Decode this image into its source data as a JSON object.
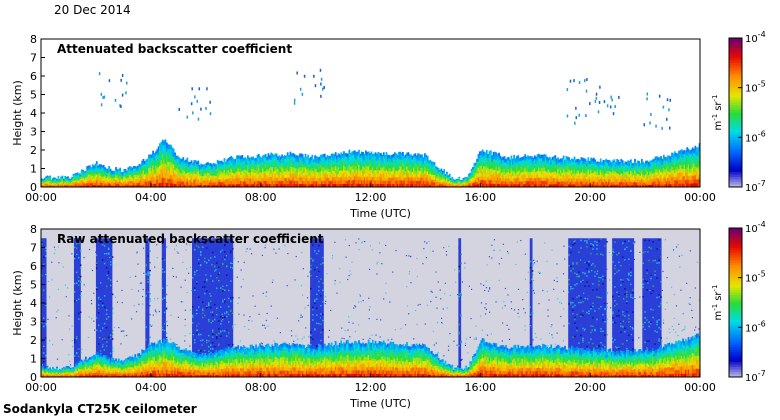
{
  "date": "20 Dec 2014",
  "instrument": "Sodankyla CT25K ceilometer",
  "chart_data": [
    {
      "type": "heatmap",
      "title": "Attenuated backscatter coefficient",
      "xlabel": "Time (UTC)",
      "ylabel": "Height (km)",
      "xticks": [
        "00:00",
        "04:00",
        "08:00",
        "12:00",
        "16:00",
        "20:00",
        "00:00"
      ],
      "yticks": [
        "0",
        "1",
        "2",
        "3",
        "4",
        "5",
        "6",
        "7",
        "8"
      ],
      "xlim": [
        0,
        24
      ],
      "ylim": [
        0,
        8
      ],
      "colorbar": {
        "unit_base": "m",
        "unit_base_exp": "-1",
        "unit_ster": "sr",
        "unit_ster_exp": "-1",
        "ticks": [
          {
            "base": "10",
            "exp": "-4"
          },
          {
            "base": "10",
            "exp": "-5"
          },
          {
            "base": "10",
            "exp": "-6"
          },
          {
            "base": "10",
            "exp": "-7"
          }
        ],
        "scale": "log",
        "range": [
          1e-07,
          0.0001
        ]
      },
      "boundary_layer_top_km": [
        [
          0,
          0.5
        ],
        [
          1,
          0.5
        ],
        [
          2,
          1.3
        ],
        [
          2.5,
          1.0
        ],
        [
          3,
          0.9
        ],
        [
          3.5,
          1.2
        ],
        [
          4,
          1.8
        ],
        [
          4.5,
          2.6
        ],
        [
          5,
          1.6
        ],
        [
          6,
          1.2
        ],
        [
          7,
          1.6
        ],
        [
          8,
          1.7
        ],
        [
          9,
          1.8
        ],
        [
          10,
          1.6
        ],
        [
          11,
          1.9
        ],
        [
          12,
          1.9
        ],
        [
          13,
          1.8
        ],
        [
          14,
          1.7
        ],
        [
          14.5,
          1.0
        ],
        [
          15,
          0.5
        ],
        [
          15.5,
          0.5
        ],
        [
          16,
          2.0
        ],
        [
          17,
          1.6
        ],
        [
          18,
          1.7
        ],
        [
          19,
          1.6
        ],
        [
          20,
          1.5
        ],
        [
          21,
          1.4
        ],
        [
          22,
          1.4
        ],
        [
          23,
          1.8
        ],
        [
          24,
          2.3
        ]
      ],
      "sky_background": "clear"
    },
    {
      "type": "heatmap",
      "title": "Raw attenuated backscatter coefficient",
      "xlabel": "Time (UTC)",
      "ylabel": "Height (km)",
      "xticks": [
        "00:00",
        "04:00",
        "08:00",
        "12:00",
        "16:00",
        "20:00",
        "00:00"
      ],
      "yticks": [
        "0",
        "1",
        "2",
        "3",
        "4",
        "5",
        "6",
        "7",
        "8"
      ],
      "xlim": [
        0,
        24
      ],
      "ylim": [
        0,
        8
      ],
      "colorbar": {
        "unit_base": "m",
        "unit_base_exp": "-1",
        "unit_ster": "sr",
        "unit_ster_exp": "-1",
        "ticks": [
          {
            "base": "10",
            "exp": "-4"
          },
          {
            "base": "10",
            "exp": "-5"
          },
          {
            "base": "10",
            "exp": "-6"
          },
          {
            "base": "10",
            "exp": "-7"
          }
        ],
        "scale": "log",
        "range": [
          1e-07,
          0.0001
        ]
      },
      "boundary_layer_top_km": [
        [
          0,
          0.5
        ],
        [
          1,
          0.5
        ],
        [
          2,
          1.3
        ],
        [
          2.5,
          1.0
        ],
        [
          3,
          0.9
        ],
        [
          3.5,
          1.2
        ],
        [
          4,
          1.8
        ],
        [
          4.5,
          2.0
        ],
        [
          5,
          1.6
        ],
        [
          6,
          1.2
        ],
        [
          7,
          1.6
        ],
        [
          8,
          1.7
        ],
        [
          9,
          1.8
        ],
        [
          10,
          1.6
        ],
        [
          11,
          1.9
        ],
        [
          12,
          1.9
        ],
        [
          13,
          1.8
        ],
        [
          14,
          1.7
        ],
        [
          14.5,
          1.0
        ],
        [
          15,
          0.5
        ],
        [
          15.5,
          0.5
        ],
        [
          16,
          2.0
        ],
        [
          17,
          1.6
        ],
        [
          18,
          1.7
        ],
        [
          19,
          1.6
        ],
        [
          20,
          1.5
        ],
        [
          21,
          1.4
        ],
        [
          22,
          1.4
        ],
        [
          23,
          1.8
        ],
        [
          24,
          2.3
        ]
      ],
      "noise_bands_hours": [
        [
          0.0,
          0.2
        ],
        [
          1.2,
          1.45
        ],
        [
          2.0,
          2.6
        ],
        [
          3.8,
          3.95
        ],
        [
          4.4,
          4.55
        ],
        [
          5.5,
          7.0
        ],
        [
          9.8,
          10.3
        ],
        [
          15.2,
          15.3
        ],
        [
          17.8,
          17.9
        ],
        [
          19.2,
          20.6
        ],
        [
          20.8,
          21.6
        ],
        [
          21.9,
          22.6
        ]
      ],
      "sky_background": "noise"
    }
  ]
}
